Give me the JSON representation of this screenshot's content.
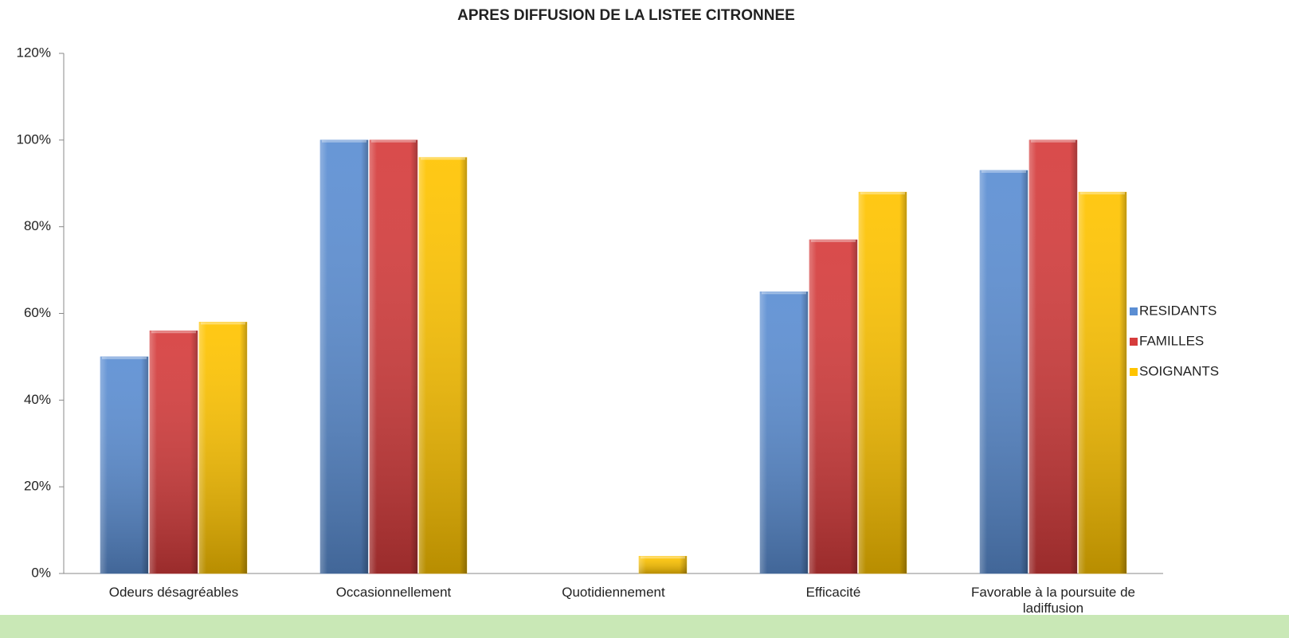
{
  "chart_data": {
    "type": "bar",
    "title": "APRES DIFFUSION DE LA LISTEE CITRONNEE",
    "categories": [
      "Odeurs désagréables",
      "Occasionnellement",
      "Quotidiennement",
      "Efficacité",
      "Favorable à la poursuite de ladiffusion"
    ],
    "series": [
      {
        "name": "RESIDANTS",
        "color": "#5b8ed3",
        "values": [
          50,
          100,
          0,
          65,
          93
        ]
      },
      {
        "name": "FAMILLES",
        "color": "#d63c3c",
        "values": [
          56,
          100,
          0,
          77,
          100
        ]
      },
      {
        "name": "SOIGNANTS",
        "color": "#ffc400",
        "values": [
          58,
          96,
          4,
          88,
          88
        ]
      }
    ],
    "ylim": [
      0,
      120
    ],
    "yticks": [
      {
        "value": 0,
        "label": "0%"
      },
      {
        "value": 20,
        "label": "20%"
      },
      {
        "value": 40,
        "label": "40%"
      },
      {
        "value": 60,
        "label": "60%"
      },
      {
        "value": 80,
        "label": "80%"
      },
      {
        "value": 100,
        "label": "100%"
      },
      {
        "value": 120,
        "label": "120%"
      }
    ],
    "grid": false,
    "legend": "right"
  }
}
